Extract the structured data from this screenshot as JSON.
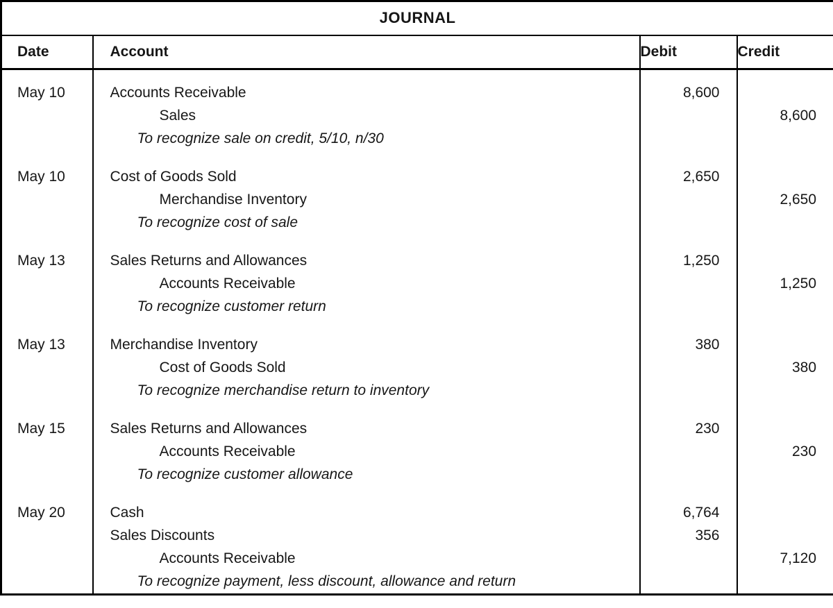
{
  "title": "JOURNAL",
  "header": {
    "date": "Date",
    "account": "Account",
    "debit": "Debit",
    "credit": "Credit"
  },
  "colors": {
    "border": "#000000",
    "text": "#161616",
    "background": "#ffffff"
  },
  "entries": [
    {
      "date": "May 10",
      "lines": [
        {
          "account": "Accounts Receivable",
          "debit": "8,600"
        },
        {
          "account": "Sales",
          "credit": "8,600"
        },
        {
          "text": "To recognize sale on credit, 5/10, n/30"
        }
      ]
    },
    {
      "date": "May 10",
      "lines": [
        {
          "account": "Cost of Goods Sold",
          "debit": "2,650"
        },
        {
          "account": "Merchandise Inventory",
          "credit": "2,650"
        },
        {
          "text": "To recognize cost of sale"
        }
      ]
    },
    {
      "date": "May 13",
      "lines": [
        {
          "account": "Sales Returns and Allowances",
          "debit": "1,250"
        },
        {
          "account": "Accounts Receivable",
          "credit": "1,250"
        },
        {
          "text": "To recognize customer return"
        }
      ]
    },
    {
      "date": "May 13",
      "lines": [
        {
          "account": "Merchandise Inventory",
          "debit": "380"
        },
        {
          "account": "Cost of Goods Sold",
          "credit": "380"
        },
        {
          "text": "To recognize merchandise return to inventory"
        }
      ]
    },
    {
      "date": "May 15",
      "lines": [
        {
          "account": "Sales Returns and Allowances",
          "debit": "230"
        },
        {
          "account": "Accounts Receivable",
          "credit": "230"
        },
        {
          "text": "To recognize customer allowance"
        }
      ]
    },
    {
      "date": "May 20",
      "lines": [
        {
          "account": "Cash",
          "debit": "6,764"
        },
        {
          "account": "Sales Discounts",
          "debit": "356"
        },
        {
          "account": "Accounts Receivable",
          "credit": "7,120"
        },
        {
          "text": "To recognize payment, less discount, allowance and return"
        }
      ]
    }
  ]
}
